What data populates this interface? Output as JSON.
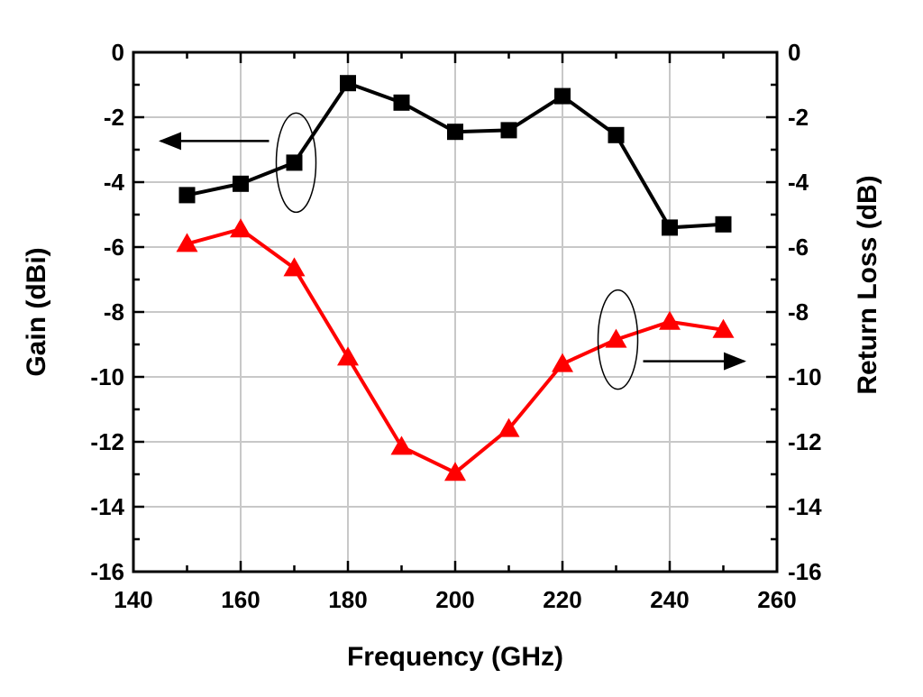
{
  "chart_data": {
    "type": "line",
    "xlabel": "Frequency (GHz)",
    "ylabel_left": "Gain (dBi)",
    "ylabel_right": "Return Loss (dB)",
    "xlim": [
      140,
      260
    ],
    "ylim": [
      -16,
      0
    ],
    "x_ticks": [
      "140",
      "160",
      "180",
      "200",
      "220",
      "240",
      "260"
    ],
    "y_ticks": [
      "0",
      "-2",
      "-4",
      "-6",
      "-8",
      "-10",
      "-12",
      "-14",
      "-16"
    ],
    "grid": true,
    "x": [
      150,
      160,
      170,
      180,
      190,
      200,
      210,
      220,
      230,
      240,
      250
    ],
    "series": [
      {
        "axis": "left",
        "color": "#000000",
        "marker": "square",
        "values": [
          -4.4,
          -4.05,
          -3.4,
          -0.95,
          -1.55,
          -2.45,
          -2.4,
          -1.35,
          -2.55,
          -5.4,
          -5.3
        ]
      },
      {
        "axis": "right",
        "color": "#ff0000",
        "marker": "triangle",
        "values": [
          -5.9,
          -5.45,
          -6.65,
          -9.4,
          -12.15,
          -12.95,
          -11.6,
          -9.6,
          -8.85,
          -8.3,
          -8.55
        ]
      }
    ],
    "annotations": [
      {
        "type": "ellipse-arrow",
        "target_series": 0,
        "at_x": 170,
        "arrow": "left"
      },
      {
        "type": "ellipse-arrow",
        "target_series": 1,
        "at_x": 230,
        "arrow": "right"
      }
    ]
  }
}
